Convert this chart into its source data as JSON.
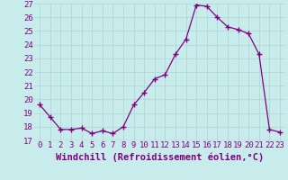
{
  "x": [
    0,
    1,
    2,
    3,
    4,
    5,
    6,
    7,
    8,
    9,
    10,
    11,
    12,
    13,
    14,
    15,
    16,
    17,
    18,
    19,
    20,
    21,
    22,
    23
  ],
  "y": [
    19.6,
    18.7,
    17.8,
    17.8,
    17.9,
    17.5,
    17.7,
    17.5,
    18.0,
    19.6,
    20.5,
    21.5,
    21.8,
    23.3,
    24.4,
    26.9,
    26.8,
    26.0,
    25.3,
    25.1,
    24.8,
    23.3,
    17.8,
    17.6
  ],
  "ylim": [
    17,
    27
  ],
  "yticks": [
    17,
    18,
    19,
    20,
    21,
    22,
    23,
    24,
    25,
    26,
    27
  ],
  "xticks": [
    0,
    1,
    2,
    3,
    4,
    5,
    6,
    7,
    8,
    9,
    10,
    11,
    12,
    13,
    14,
    15,
    16,
    17,
    18,
    19,
    20,
    21,
    22,
    23
  ],
  "xlabel": "Windchill (Refroidissement éolien,°C)",
  "line_color": "#800080",
  "marker": "+",
  "marker_size": 4,
  "bg_color": "#c8ecec",
  "grid_color": "#b0d8d8",
  "tick_color": "#800080",
  "label_color": "#800080",
  "font_size_tick": 6.5,
  "font_size_label": 7.5
}
